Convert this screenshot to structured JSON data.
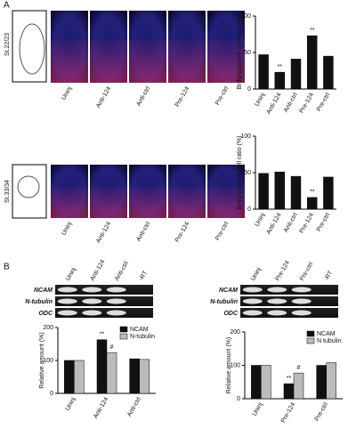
{
  "figure": {
    "panel_a": "A",
    "panel_b": "B",
    "stage_top": "St.22/23",
    "stage_bottom": "St.33/34",
    "image_labels_top": [
      "Uninj",
      "Anti-124",
      "Anti-ctrl",
      "Pre-124",
      "Pre-ctrl"
    ],
    "image_labels_bottom": [
      "Uninj",
      "Anti-124",
      "Anti-ctrl",
      "Pre-124",
      "Pre-ctrl"
    ],
    "gel_left": {
      "lanes": [
        "Uninj",
        "Anti-124",
        "Anti-ctrl",
        "-RT"
      ],
      "rows": [
        "NCAM",
        "N-tubulin",
        "ODC"
      ]
    },
    "gel_right": {
      "lanes": [
        "Uninj",
        "Pre-124",
        "Pre-ctrl",
        "-RT"
      ],
      "rows": [
        "NCAM",
        "N-tubulin",
        "ODC"
      ]
    }
  },
  "chart_data": [
    {
      "type": "bar",
      "y_label": "BrdU-positive cell ratio (%)",
      "categories": [
        "Uninj",
        "Anti-124",
        "Anti-ctrl",
        "Pre-124",
        "Pre-ctrl"
      ],
      "series": [
        {
          "name": null,
          "color": "#111111",
          "values": [
            47,
            23,
            41,
            73,
            45
          ],
          "annotations": [
            null,
            "**",
            null,
            "**",
            null
          ]
        }
      ],
      "ylim": [
        0,
        100
      ],
      "yticks": [
        0,
        50,
        100
      ]
    },
    {
      "type": "bar",
      "y_label": "BrdU-positive cell ratio (%)",
      "categories": [
        "Uninj",
        "Anti-124",
        "Anti-ctrl",
        "Pre-124",
        "Pre-ctrl"
      ],
      "series": [
        {
          "name": null,
          "color": "#111111",
          "values": [
            49,
            51,
            45,
            16,
            44
          ],
          "annotations": [
            null,
            null,
            null,
            "**",
            null
          ]
        }
      ],
      "ylim": [
        0,
        100
      ],
      "yticks": [
        0,
        50,
        100
      ]
    },
    {
      "type": "bar",
      "y_label": "Relative amount (%)",
      "categories": [
        "Uninj",
        "Anti-124",
        "Anti-ctrl"
      ],
      "series": [
        {
          "name": "NCAM",
          "color": "#111111",
          "values": [
            100,
            163,
            105
          ],
          "annotations": [
            null,
            "**",
            null
          ]
        },
        {
          "name": "N-tubulin",
          "color": "#bbbbbb",
          "values": [
            100,
            124,
            103
          ],
          "annotations": [
            null,
            "#",
            null
          ]
        }
      ],
      "ylim": [
        0,
        200
      ],
      "yticks": [
        0,
        100,
        200
      ],
      "legend": "top-right"
    },
    {
      "type": "bar",
      "y_label": "Relative amount (%)",
      "categories": [
        "Uninj",
        "Pre-124",
        "Pre-ctrl"
      ],
      "series": [
        {
          "name": "NCAM",
          "color": "#111111",
          "values": [
            100,
            45,
            100
          ],
          "annotations": [
            null,
            "**",
            null
          ]
        },
        {
          "name": "N tubulin",
          "color": "#bbbbbb",
          "values": [
            100,
            77,
            108
          ],
          "annotations": [
            null,
            "#",
            null
          ]
        }
      ],
      "ylim": [
        0,
        200
      ],
      "yticks": [
        0,
        100,
        200
      ],
      "legend": "top-right"
    }
  ]
}
